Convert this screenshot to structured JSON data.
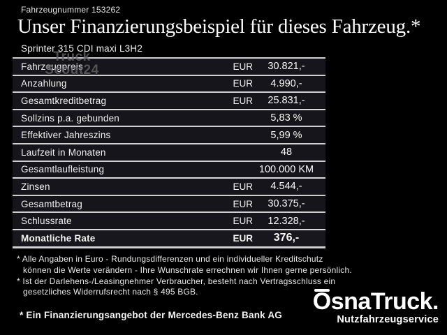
{
  "header": {
    "vehicle_number": "Fahrzeugnummer 153262",
    "title": "Unser Finanzierungsbeispiel für dieses Fahrzeug.*",
    "model": "Sprinter 315 CDI maxi L3H2"
  },
  "watermark": {
    "line1": "Truck",
    "line2": "Scout24"
  },
  "table": {
    "rows": [
      {
        "label": "Fahrzeugpreis",
        "currency": "EUR",
        "value": "30.821,-",
        "group_end": false,
        "emphasis": false
      },
      {
        "label": "Anzahlung",
        "currency": "EUR",
        "value": "4.990,-",
        "group_end": false,
        "emphasis": false
      },
      {
        "label": "Gesamtkreditbetrag",
        "currency": "EUR",
        "value": "25.831,-",
        "group_end": true,
        "emphasis": false
      },
      {
        "label": "Sollzins p.a. gebunden",
        "currency": "",
        "value": "5,83 %",
        "group_end": false,
        "emphasis": false
      },
      {
        "label": "Effektiver Jahreszins",
        "currency": "",
        "value": "5,99 %",
        "group_end": false,
        "emphasis": false
      },
      {
        "label": "Laufzeit in Monaten",
        "currency": "",
        "value": "48",
        "group_end": false,
        "emphasis": false
      },
      {
        "label": "Gesamtlaufleistung",
        "currency": "",
        "value": "100.000 KM",
        "group_end": true,
        "emphasis": false
      },
      {
        "label": "Zinsen",
        "currency": "EUR",
        "value": "4.544,-",
        "group_end": false,
        "emphasis": false
      },
      {
        "label": "Gesamtbetrag",
        "currency": "EUR",
        "value": "30.375,-",
        "group_end": false,
        "emphasis": false
      },
      {
        "label": "Schlussrate",
        "currency": "EUR",
        "value": "12.328,-",
        "group_end": true,
        "emphasis": false
      },
      {
        "label": "Monatliche Rate",
        "currency": "EUR",
        "value": "376,-",
        "group_end": false,
        "emphasis": true
      }
    ]
  },
  "footnotes": {
    "lines": [
      {
        "text": "* Alle Angaben in Euro - Rundungsdifferenzen und ein individueller Kreditschutz",
        "indent": false
      },
      {
        "text": "können die Werte verändern - Ihre Wunschrate errechnen wir Ihnen gerne persönlich.",
        "indent": true
      },
      {
        "text": "* Ist der Darlehens-/Leasingnehmer Verbraucher, besteht nach Vertragsschluss ein",
        "indent": false
      },
      {
        "text": "gesetzliches Widerrufsrecht nach § 495 BGB.",
        "indent": true
      }
    ]
  },
  "bank_note": "* Ein Finanzierungsangebot der Mercedes-Benz Bank AG",
  "logo": {
    "name": "OsnaTruck.",
    "tagline": "Nutzfahrzeugservice"
  },
  "colors": {
    "background": "#000000",
    "row_background": "#15151b",
    "separator": "#cfcfcf",
    "text": "#f2f2f2"
  }
}
